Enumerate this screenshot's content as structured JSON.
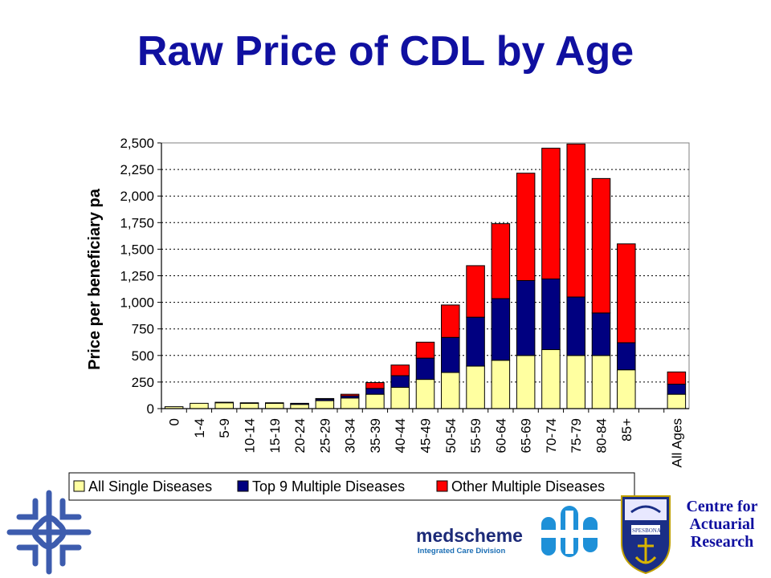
{
  "slide": {
    "title": "Raw Price of CDL by Age"
  },
  "chart_data": {
    "type": "bar",
    "stacked": true,
    "ylabel": "Price per beneficiary pa",
    "xlabel": "",
    "ylim": [
      0,
      2500
    ],
    "yticks": [
      "0",
      "250",
      "500",
      "750",
      "1,000",
      "1,250",
      "1,500",
      "1,750",
      "2,000",
      "2,250",
      "2,500"
    ],
    "grid": "horizontal dashed",
    "legend_position": "bottom",
    "categories": [
      "0",
      "1-4",
      "5-9",
      "10-14",
      "15-19",
      "20-24",
      "25-29",
      "30-34",
      "35-39",
      "40-44",
      "45-49",
      "50-54",
      "55-59",
      "60-64",
      "65-69",
      "70-74",
      "75-79",
      "80-84",
      "85+",
      "",
      "All Ages"
    ],
    "series": [
      {
        "name": "All Single Diseases",
        "color": "#ffffa0",
        "values": [
          18,
          50,
          55,
          50,
          50,
          40,
          75,
          100,
          135,
          200,
          275,
          340,
          400,
          455,
          500,
          555,
          500,
          500,
          365,
          null,
          135
        ]
      },
      {
        "name": "Top 9 Multiple Diseases",
        "color": "#000080",
        "values": [
          0,
          0,
          5,
          5,
          5,
          10,
          15,
          20,
          55,
          110,
          200,
          330,
          460,
          580,
          705,
          665,
          550,
          400,
          255,
          null,
          95
        ]
      },
      {
        "name": "Other Multiple Diseases",
        "color": "#ff0000",
        "values": [
          0,
          0,
          0,
          0,
          0,
          0,
          5,
          15,
          55,
          100,
          150,
          305,
          485,
          705,
          1010,
          1230,
          1440,
          1265,
          930,
          null,
          115
        ]
      }
    ]
  },
  "logos": {
    "medscheme": "medscheme",
    "medscheme_sub": "Integrated Care Division",
    "crest_motto_left": "SPES",
    "crest_motto_right": "BONA",
    "car_line1": "Centre for",
    "car_line2": "Actuarial",
    "car_line3": "Research"
  }
}
